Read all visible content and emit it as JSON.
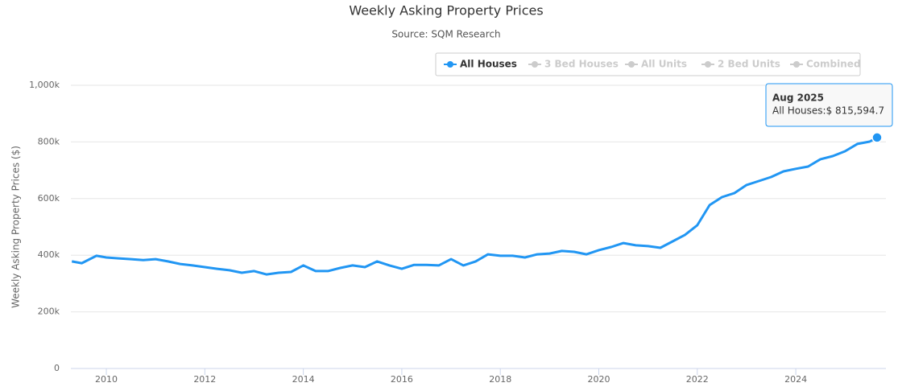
{
  "chart_data": {
    "type": "line",
    "title": "Weekly Asking Property Prices",
    "subtitle": "Source: SQM Research",
    "y_label": "Weekly Asking Property Prices ($)",
    "x": [
      2009.3,
      2009.5,
      2009.8,
      2010.0,
      2010.25,
      2010.5,
      2010.75,
      2011.0,
      2011.25,
      2011.5,
      2011.75,
      2012.0,
      2012.25,
      2012.5,
      2012.75,
      2013.0,
      2013.25,
      2013.5,
      2013.75,
      2014.0,
      2014.25,
      2014.5,
      2014.75,
      2015.0,
      2015.25,
      2015.5,
      2015.75,
      2016.0,
      2016.25,
      2016.5,
      2016.75,
      2017.0,
      2017.25,
      2017.5,
      2017.75,
      2018.0,
      2018.25,
      2018.5,
      2018.75,
      2019.0,
      2019.25,
      2019.5,
      2019.75,
      2020.0,
      2020.25,
      2020.5,
      2020.75,
      2021.0,
      2021.25,
      2021.5,
      2021.75,
      2022.0,
      2022.25,
      2022.5,
      2022.75,
      2023.0,
      2023.25,
      2023.5,
      2023.75,
      2024.0,
      2024.25,
      2024.5,
      2024.75,
      2025.0,
      2025.25,
      2025.5,
      2025.65
    ],
    "series": [
      {
        "name": "All Houses",
        "color": "#2196f3",
        "values": [
          378000,
          372000,
          398000,
          392000,
          389000,
          386000,
          383000,
          386000,
          378000,
          369000,
          364000,
          358000,
          352000,
          347000,
          338000,
          344000,
          332000,
          338000,
          341000,
          364000,
          344000,
          344000,
          355000,
          364000,
          358000,
          378000,
          364000,
          352000,
          366000,
          366000,
          364000,
          386000,
          364000,
          378000,
          403000,
          398000,
          398000,
          392000,
          403000,
          406000,
          415000,
          412000,
          403000,
          418000,
          429000,
          443000,
          435000,
          432000,
          426000,
          449000,
          472000,
          506000,
          577000,
          605000,
          619000,
          648000,
          662000,
          676000,
          696000,
          705000,
          713000,
          739000,
          750000,
          767000,
          793000,
          801000,
          815594.7
        ]
      }
    ],
    "hidden_series": [
      "3 Bed Houses",
      "All Units",
      "2 Bed Units",
      "Combined"
    ],
    "tooltip": {
      "title": "Aug 2025",
      "text": "All Houses:$ 815,594.7"
    },
    "xlim": [
      2009.28,
      2025.83
    ],
    "xticks": [
      2010,
      2012,
      2014,
      2016,
      2018,
      2020,
      2022,
      2024
    ],
    "ylim": [
      0,
      1000000
    ],
    "yticks": [
      0,
      {
        "value": 200000,
        "label": "200k"
      },
      {
        "value": 400000,
        "label": "400k"
      },
      {
        "value": 600000,
        "label": "600k"
      },
      {
        "value": 800000,
        "label": "800k"
      },
      {
        "value": 1000000,
        "label": "1,000k"
      }
    ],
    "grid": true
  }
}
